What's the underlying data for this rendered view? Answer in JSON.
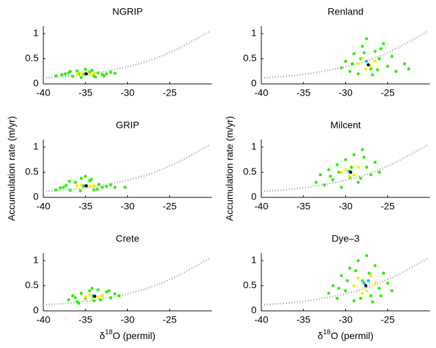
{
  "chart_data": [
    {
      "type": "scatter",
      "title": "NGRIP",
      "xlim": [
        -40,
        -20
      ],
      "ylim": [
        0,
        1.15
      ],
      "xticks": [
        -40,
        -35,
        -30,
        -25
      ],
      "yticks": [
        0,
        0.5,
        1
      ],
      "series": [
        {
          "color": "#999999",
          "line": "dotted",
          "x": [
            -40,
            -38,
            -36,
            -34,
            -32,
            -30,
            -28,
            -26,
            -24,
            -22,
            -20.3
          ],
          "values": [
            0.12,
            0.14,
            0.17,
            0.21,
            0.27,
            0.34,
            0.43,
            0.55,
            0.7,
            0.88,
            1.04
          ]
        },
        {
          "color": "#33ee11",
          "x": [
            -38.5,
            -37.8,
            -37,
            -36.5,
            -36,
            -35.5,
            -35,
            -34.5,
            -34,
            -33.5,
            -33,
            -32.5,
            -32,
            -31.5,
            -36.8,
            -34.2,
            -35.8,
            -33.8,
            -37.4,
            -32.8
          ],
          "values": [
            0.16,
            0.18,
            0.22,
            0.15,
            0.26,
            0.13,
            0.29,
            0.24,
            0.16,
            0.22,
            0.19,
            0.2,
            0.23,
            0.21,
            0.25,
            0.27,
            0.2,
            0.14,
            0.2,
            0.16
          ]
        },
        {
          "color": "#ffee00",
          "x": [
            -36,
            -35.5,
            -34.5,
            -34,
            -35.2
          ],
          "values": [
            0.2,
            0.22,
            0.19,
            0.21,
            0.18
          ]
        },
        {
          "color": "#00ccdd",
          "x": [
            -35.1
          ],
          "values": [
            0.2
          ]
        },
        {
          "color": "#000000",
          "x": [
            -34.9
          ],
          "values": [
            0.2
          ]
        }
      ]
    },
    {
      "type": "scatter",
      "title": "Renland",
      "xlim": [
        -40,
        -20
      ],
      "ylim": [
        0,
        1.15
      ],
      "xticks": [
        -40,
        -35,
        -30,
        -25
      ],
      "yticks": [
        0,
        0.5,
        1
      ],
      "series": [
        {
          "color": "#999999",
          "line": "dotted",
          "x": [
            -40,
            -38,
            -36,
            -34,
            -32,
            -30,
            -28,
            -26,
            -24,
            -22,
            -20.3
          ],
          "values": [
            0.12,
            0.14,
            0.17,
            0.21,
            0.27,
            0.34,
            0.43,
            0.55,
            0.7,
            0.88,
            1.04
          ]
        },
        {
          "color": "#33ee11",
          "x": [
            -30.5,
            -30,
            -29.5,
            -29,
            -28.5,
            -28,
            -27.5,
            -27,
            -26.5,
            -26,
            -25.5,
            -25,
            -24.5,
            -24,
            -23,
            -22.5,
            -28.2,
            -26.8,
            -29.2,
            -25.8,
            -27.8,
            -26.2
          ],
          "values": [
            0.32,
            0.45,
            0.25,
            0.6,
            0.2,
            0.75,
            0.9,
            0.3,
            0.65,
            0.5,
            0.8,
            0.35,
            0.55,
            0.25,
            0.4,
            0.3,
            0.5,
            0.18,
            0.4,
            0.7,
            0.62,
            0.28
          ]
        },
        {
          "color": "#ffee00",
          "x": [
            -28.5,
            -28,
            -27,
            -26.5,
            -27.6
          ],
          "values": [
            0.4,
            0.5,
            0.35,
            0.45,
            0.3
          ]
        },
        {
          "color": "#00ccdd",
          "x": [
            -27.5
          ],
          "values": [
            0.45
          ]
        },
        {
          "color": "#000000",
          "x": [
            -27.3
          ],
          "values": [
            0.38
          ]
        }
      ]
    },
    {
      "type": "scatter",
      "title": "GRIP",
      "ylabel": "Accumulation rate (m/yr)",
      "xlim": [
        -40,
        -20
      ],
      "ylim": [
        0,
        1.15
      ],
      "xticks": [
        -40,
        -35,
        -30,
        -25
      ],
      "yticks": [
        0,
        0.5,
        1
      ],
      "series": [
        {
          "color": "#999999",
          "line": "dotted",
          "x": [
            -40,
            -38,
            -36,
            -34,
            -32,
            -30,
            -28,
            -26,
            -24,
            -22,
            -20.3
          ],
          "values": [
            0.12,
            0.14,
            0.17,
            0.21,
            0.27,
            0.34,
            0.43,
            0.55,
            0.7,
            0.88,
            1.04
          ]
        },
        {
          "color": "#33ee11",
          "x": [
            -38.5,
            -38,
            -37.3,
            -36.8,
            -36.2,
            -35.6,
            -35,
            -34.5,
            -34,
            -33.4,
            -33,
            -32.5,
            -32,
            -31.5,
            -30.3,
            -36.9,
            -34.3,
            -35.5,
            -33.6,
            -37.6
          ],
          "values": [
            0.15,
            0.19,
            0.24,
            0.14,
            0.3,
            0.13,
            0.42,
            0.33,
            0.15,
            0.26,
            0.2,
            0.22,
            0.25,
            0.2,
            0.2,
            0.32,
            0.36,
            0.38,
            0.16,
            0.2
          ]
        },
        {
          "color": "#ffee00",
          "x": [
            -36,
            -35.5,
            -34.5,
            -34,
            -35.3
          ],
          "values": [
            0.23,
            0.25,
            0.22,
            0.24,
            0.2
          ]
        },
        {
          "color": "#00ccdd",
          "x": [
            -35.2
          ],
          "values": [
            0.23
          ]
        },
        {
          "color": "#000000",
          "x": [
            -34.9
          ],
          "values": [
            0.23
          ]
        }
      ]
    },
    {
      "type": "scatter",
      "title": "Milcent",
      "ylabel": "Accumulation rate (m/yr)",
      "xlim": [
        -40,
        -20
      ],
      "ylim": [
        0,
        1.15
      ],
      "xticks": [
        -40,
        -35,
        -30,
        -25
      ],
      "yticks": [
        0,
        0.5,
        1
      ],
      "series": [
        {
          "color": "#999999",
          "line": "dotted",
          "x": [
            -40,
            -38,
            -36,
            -34,
            -32,
            -30,
            -28,
            -26,
            -24,
            -22,
            -20.3
          ],
          "values": [
            0.12,
            0.14,
            0.17,
            0.21,
            0.27,
            0.34,
            0.43,
            0.55,
            0.7,
            0.88,
            1.04
          ]
        },
        {
          "color": "#33ee11",
          "x": [
            -33.5,
            -33,
            -32.5,
            -32,
            -31.5,
            -31,
            -30.5,
            -30,
            -29.5,
            -29,
            -28.5,
            -28,
            -27.5,
            -27,
            -26.5,
            -26,
            -30.8,
            -29.3,
            -28.2,
            -31.8,
            -27.8
          ],
          "values": [
            0.3,
            0.45,
            0.25,
            0.55,
            0.35,
            0.65,
            0.2,
            0.75,
            0.4,
            0.85,
            0.3,
            0.95,
            0.6,
            0.45,
            0.7,
            0.5,
            0.5,
            0.6,
            0.38,
            0.42,
            0.8
          ]
        },
        {
          "color": "#ffee00",
          "x": [
            -30.5,
            -30,
            -29,
            -28.5,
            -29.6
          ],
          "values": [
            0.5,
            0.55,
            0.45,
            0.6,
            0.42
          ]
        },
        {
          "color": "#00ccdd",
          "x": [
            -29.6
          ],
          "values": [
            0.52
          ]
        },
        {
          "color": "#000000",
          "x": [
            -29.4
          ],
          "values": [
            0.5
          ]
        }
      ]
    },
    {
      "type": "scatter",
      "title": "Crete",
      "xlabel": [
        "δ",
        "18",
        "O (permil)"
      ],
      "xlim": [
        -40,
        -20
      ],
      "ylim": [
        0,
        1.15
      ],
      "xticks": [
        -40,
        -35,
        -30,
        -25
      ],
      "yticks": [
        0,
        0.5,
        1
      ],
      "series": [
        {
          "color": "#999999",
          "line": "dotted",
          "x": [
            -40,
            -38,
            -36,
            -34,
            -32,
            -30,
            -28,
            -26,
            -24,
            -22,
            -20.3
          ],
          "values": [
            0.12,
            0.14,
            0.17,
            0.21,
            0.27,
            0.34,
            0.43,
            0.55,
            0.7,
            0.88,
            1.04
          ]
        },
        {
          "color": "#33ee11",
          "x": [
            -37,
            -36.5,
            -36,
            -35.5,
            -35,
            -34.5,
            -34,
            -33.5,
            -33,
            -32.5,
            -32,
            -31.5,
            -31,
            -35.8,
            -34.2,
            -33.2,
            -36.2,
            -32.2
          ],
          "values": [
            0.22,
            0.3,
            0.18,
            0.35,
            0.25,
            0.4,
            0.2,
            0.42,
            0.3,
            0.38,
            0.26,
            0.34,
            0.3,
            0.15,
            0.45,
            0.22,
            0.26,
            0.4
          ]
        },
        {
          "color": "#ffee00",
          "x": [
            -35,
            -34.5,
            -33.5,
            -33,
            -34.2
          ],
          "values": [
            0.28,
            0.32,
            0.27,
            0.31,
            0.24
          ]
        },
        {
          "color": "#00ccdd",
          "x": [
            -34.1
          ],
          "values": [
            0.3
          ]
        },
        {
          "color": "#000000",
          "x": [
            -33.9
          ],
          "values": [
            0.29
          ]
        }
      ]
    },
    {
      "type": "scatter",
      "title": "Dye–3",
      "xlabel": [
        "δ",
        "18",
        "O (permil)"
      ],
      "xlim": [
        -40,
        -20
      ],
      "ylim": [
        0,
        1.15
      ],
      "xticks": [
        -40,
        -35,
        -30,
        -25
      ],
      "yticks": [
        0,
        0.5,
        1
      ],
      "series": [
        {
          "color": "#999999",
          "line": "dotted",
          "x": [
            -40,
            -38,
            -36,
            -34,
            -32,
            -30,
            -28,
            -26,
            -24,
            -22,
            -20.3
          ],
          "values": [
            0.12,
            0.14,
            0.17,
            0.21,
            0.27,
            0.34,
            0.43,
            0.55,
            0.7,
            0.88,
            1.04
          ]
        },
        {
          "color": "#33ee11",
          "x": [
            -32,
            -31.5,
            -31,
            -30.5,
            -30,
            -29.5,
            -29,
            -28.5,
            -28,
            -27.5,
            -27,
            -26.5,
            -26,
            -25.5,
            -25,
            -24.5,
            -29.8,
            -28.2,
            -26.8,
            -30.8,
            -27.2,
            -25.8,
            -28.8
          ],
          "values": [
            0.35,
            0.5,
            0.25,
            0.7,
            0.4,
            0.85,
            0.2,
            1.0,
            0.6,
            1.1,
            0.3,
            0.9,
            0.45,
            0.75,
            0.55,
            0.4,
            0.6,
            0.25,
            0.18,
            0.45,
            0.75,
            0.3,
            0.8
          ]
        },
        {
          "color": "#ffee00",
          "x": [
            -29,
            -28.5,
            -27.5,
            -26.5,
            -28,
            -27
          ],
          "values": [
            0.5,
            0.65,
            0.4,
            0.55,
            0.35,
            0.7
          ]
        },
        {
          "color": "#00ccdd",
          "x": [
            -27.8,
            -27.3
          ],
          "values": [
            0.55,
            0.6
          ]
        },
        {
          "color": "#000000",
          "x": [
            -27.6
          ],
          "values": [
            0.5
          ]
        }
      ]
    }
  ]
}
